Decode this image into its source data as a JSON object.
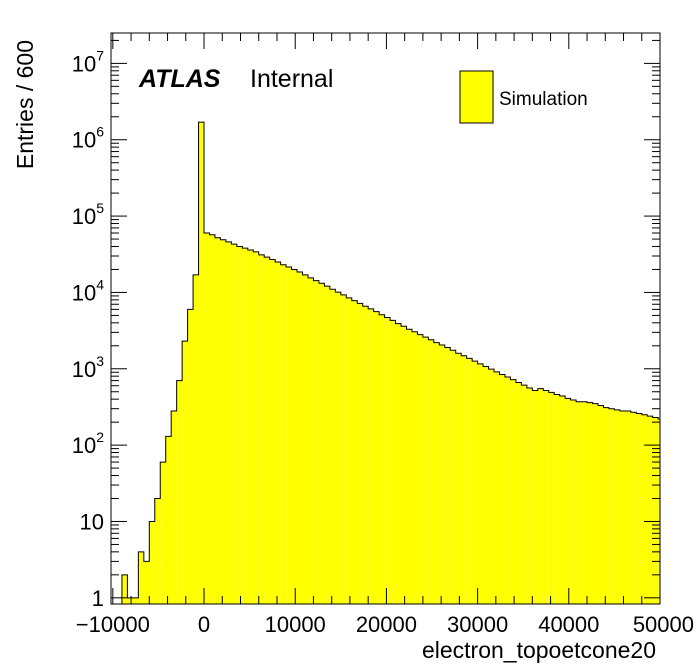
{
  "colors": {
    "fill": "#ffff00",
    "line": "#000000",
    "frame": "#000000"
  },
  "labels": {
    "experiment": "ATLAS",
    "status": "Internal"
  },
  "chart_data": {
    "type": "histogram",
    "xlabel": "electron_topoetcone20",
    "ylabel": "Entries / 600",
    "x_ticks": [
      "−10000",
      "0",
      "10000",
      "20000",
      "30000",
      "40000",
      "50000"
    ],
    "y_ticks": [
      {
        "base": "1",
        "exp": ""
      },
      {
        "base": "10",
        "exp": ""
      },
      {
        "base": "10",
        "exp": "2"
      },
      {
        "base": "10",
        "exp": "3"
      },
      {
        "base": "10",
        "exp": "4"
      },
      {
        "base": "10",
        "exp": "5"
      },
      {
        "base": "10",
        "exp": "6"
      },
      {
        "base": "10",
        "exp": "7"
      }
    ],
    "xlim": [
      -10200,
      50000
    ],
    "ylim": [
      0.83,
      25000000
    ],
    "yscale": "log",
    "bin_width": 600,
    "series": [
      {
        "name": "Simulation",
        "bin_lows": [
          -9600,
          -9000,
          -8400,
          -7800,
          -7200,
          -6600,
          -6000,
          -5400,
          -4800,
          -4200,
          -3600,
          -3000,
          -2400,
          -1800,
          -1200,
          -600,
          0,
          600,
          1200,
          1800,
          2400,
          3000,
          3600,
          4200,
          4800,
          5400,
          6000,
          6600,
          7200,
          7800,
          8400,
          9000,
          9600,
          10200,
          10800,
          11400,
          12000,
          12600,
          13200,
          13800,
          14400,
          15000,
          15600,
          16200,
          16800,
          17400,
          18000,
          18600,
          19200,
          19800,
          20400,
          21000,
          21600,
          22200,
          22800,
          23400,
          24000,
          24600,
          25200,
          25800,
          26400,
          27000,
          27600,
          28200,
          28800,
          29400,
          30000,
          30600,
          31200,
          31800,
          32400,
          33000,
          33600,
          34200,
          34800,
          35400,
          36000,
          36600,
          37200,
          37800,
          38400,
          39000,
          39600,
          40200,
          40800,
          41400,
          42000,
          42600,
          43200,
          43800,
          44400,
          45000,
          45600,
          46200,
          46800,
          47400,
          48000,
          48600,
          49200,
          49800
        ],
        "values": [
          0,
          2,
          1,
          1,
          4,
          3,
          10,
          20,
          60,
          130,
          280,
          700,
          2300,
          6000,
          17000,
          1700000,
          60000,
          57000,
          52000,
          49000,
          46000,
          43000,
          40000,
          38000,
          36000,
          34000,
          31000,
          29000,
          27000,
          25000,
          23000,
          21500,
          20000,
          18500,
          17000,
          15500,
          14300,
          13200,
          12100,
          11000,
          10100,
          9300,
          8500,
          7800,
          7200,
          6600,
          6100,
          5600,
          5100,
          4700,
          4300,
          3900,
          3600,
          3300,
          3050,
          2800,
          2600,
          2400,
          2200,
          2050,
          1900,
          1750,
          1600,
          1480,
          1370,
          1260,
          1160,
          1070,
          990,
          910,
          840,
          780,
          720,
          660,
          610,
          560,
          520,
          550,
          520,
          490,
          460,
          440,
          410,
          390,
          370,
          370,
          360,
          350,
          330,
          310,
          300,
          290,
          280,
          280,
          270,
          260,
          250,
          240,
          230,
          220
        ]
      }
    ]
  }
}
